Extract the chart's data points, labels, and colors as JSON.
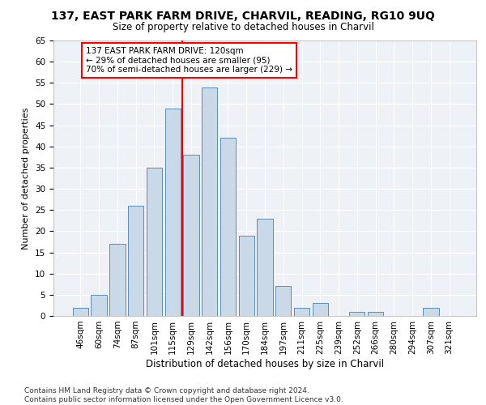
{
  "title1": "137, EAST PARK FARM DRIVE, CHARVIL, READING, RG10 9UQ",
  "title2": "Size of property relative to detached houses in Charvil",
  "xlabel": "Distribution of detached houses by size in Charvil",
  "ylabel": "Number of detached properties",
  "categories": [
    "46sqm",
    "60sqm",
    "74sqm",
    "87sqm",
    "101sqm",
    "115sqm",
    "129sqm",
    "142sqm",
    "156sqm",
    "170sqm",
    "184sqm",
    "197sqm",
    "211sqm",
    "225sqm",
    "239sqm",
    "252sqm",
    "266sqm",
    "280sqm",
    "294sqm",
    "307sqm",
    "321sqm"
  ],
  "values": [
    2,
    5,
    17,
    26,
    35,
    49,
    38,
    54,
    42,
    19,
    23,
    7,
    2,
    3,
    0,
    1,
    1,
    0,
    0,
    2,
    0
  ],
  "bar_color": "#c9d9e8",
  "bar_edge_color": "#5b8db8",
  "vline_x_idx": 5.5,
  "vline_color": "red",
  "annotation_text": "137 EAST PARK FARM DRIVE: 120sqm\n← 29% of detached houses are smaller (95)\n70% of semi-detached houses are larger (229) →",
  "annotation_box_color": "white",
  "annotation_box_edge_color": "red",
  "ylim": [
    0,
    65
  ],
  "yticks": [
    0,
    5,
    10,
    15,
    20,
    25,
    30,
    35,
    40,
    45,
    50,
    55,
    60,
    65
  ],
  "footer": "Contains HM Land Registry data © Crown copyright and database right 2024.\nContains public sector information licensed under the Open Government Licence v3.0.",
  "bg_color": "#eef2f7",
  "grid_color": "white",
  "title1_fontsize": 10,
  "title2_fontsize": 8.5,
  "xlabel_fontsize": 8.5,
  "ylabel_fontsize": 8,
  "tick_fontsize": 7.5,
  "annot_fontsize": 7.5,
  "footer_fontsize": 6.5
}
